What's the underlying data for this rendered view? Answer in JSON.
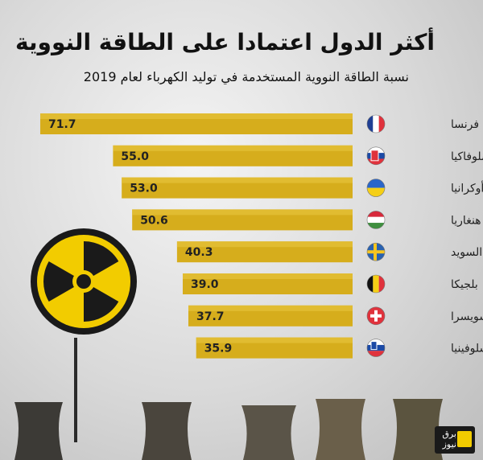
{
  "header": {
    "title": "أكثر الدول اعتمادا على الطاقة النووية",
    "subtitle": "نسبة الطاقة النووية المستخدمة في توليد الكهرباء لعام 2019"
  },
  "logo": {
    "text_line1": "برق",
    "text_line2": "نيوز"
  },
  "colors": {
    "bar": "#d6ad1c",
    "bar_light": "#e6c23a",
    "value_text": "#222222",
    "hazard_yellow": "#f2cc00"
  },
  "chart_data": {
    "type": "bar",
    "orientation": "horizontal",
    "title": "أكثر الدول اعتمادا على الطاقة النووية",
    "subtitle": "نسبة الطاقة النووية المستخدمة في توليد الكهرباء لعام 2019",
    "categories": [
      "فرنسا",
      "سلوفاكيا",
      "أوكرانيا",
      "هنغاريا",
      "السويد",
      "بلجيكا",
      "سويسرا",
      "سلوفينيا"
    ],
    "values": [
      71.7,
      55.0,
      53.0,
      50.6,
      40.3,
      39.0,
      37.7,
      35.9
    ],
    "value_labels": [
      "71.7",
      "55.0",
      "53.0",
      "50.6",
      "40.3",
      "39.0",
      "37.7",
      "35.9"
    ],
    "flags": [
      "france-flag-icon",
      "slovakia-flag-icon",
      "ukraine-flag-icon",
      "hungary-flag-icon",
      "sweden-flag-icon",
      "belgium-flag-icon",
      "switzerland-flag-icon",
      "slovenia-flag-icon"
    ],
    "xlim": [
      0,
      71.7
    ],
    "grid": false,
    "legend": "none"
  }
}
